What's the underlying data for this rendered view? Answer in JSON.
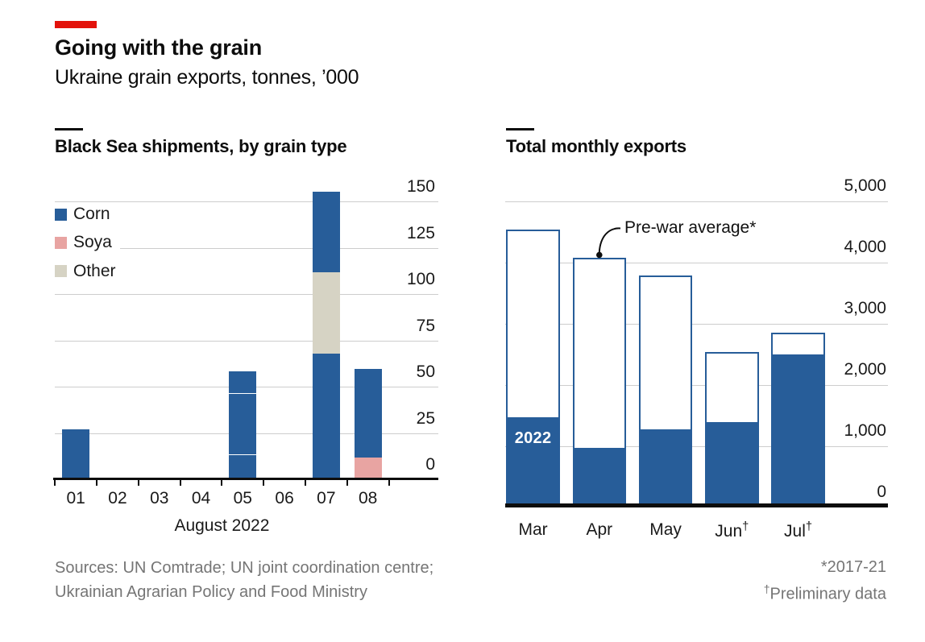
{
  "header": {
    "title": "Going with the grain",
    "subtitle": "Ukraine grain exports, tonnes, ’000"
  },
  "colors": {
    "brand_red": "#E3120B",
    "corn": "#275D99",
    "soya": "#E8A4A2",
    "other": "#D6D3C4",
    "grid": "#CDCDCD",
    "axis": "#0D0D0D"
  },
  "chart_data": [
    {
      "type": "bar",
      "title": "Black Sea shipments, by grain type",
      "xlabel": "August 2022",
      "categories": [
        "01",
        "02",
        "03",
        "04",
        "05",
        "06",
        "07",
        "08"
      ],
      "yticks": [
        0,
        25,
        50,
        75,
        100,
        125,
        150
      ],
      "ylim": [
        0,
        150
      ],
      "legend": [
        {
          "name": "Corn",
          "key": "corn"
        },
        {
          "name": "Soya",
          "key": "soya"
        },
        {
          "name": "Other",
          "key": "other"
        }
      ],
      "bars": [
        {
          "day": "01",
          "segments": [
            {
              "series": "corn",
              "value": 26
            }
          ]
        },
        {
          "day": "02",
          "segments": []
        },
        {
          "day": "03",
          "segments": []
        },
        {
          "day": "04",
          "segments": []
        },
        {
          "day": "05",
          "segments": [
            {
              "series": "corn",
              "value": 12.5
            },
            {
              "series": "corn",
              "value": 33
            },
            {
              "series": "corn",
              "value": 12
            }
          ]
        },
        {
          "day": "06",
          "segments": []
        },
        {
          "day": "07",
          "segments": [
            {
              "series": "corn",
              "value": 67
            },
            {
              "series": "other",
              "value": 44
            },
            {
              "series": "corn",
              "value": 43.5
            }
          ]
        },
        {
          "day": "08",
          "segments": [
            {
              "series": "soya",
              "value": 11
            },
            {
              "series": "corn",
              "value": 47.5
            }
          ]
        }
      ]
    },
    {
      "type": "bar",
      "title": "Total monthly exports",
      "categories": [
        {
          "label": "Mar",
          "dagger": false
        },
        {
          "label": "Apr",
          "dagger": false
        },
        {
          "label": "May",
          "dagger": false
        },
        {
          "label": "Jun",
          "dagger": true
        },
        {
          "label": "Jul",
          "dagger": true
        }
      ],
      "yticks": [
        0,
        1000,
        2000,
        3000,
        4000,
        5000
      ],
      "ylim": [
        0,
        5000
      ],
      "ytick_labels": [
        "0",
        "1,000",
        "2,000",
        "3,000",
        "4,000",
        "5,000"
      ],
      "series": [
        {
          "name": "Pre-war average*",
          "style": "outline",
          "values": [
            4530,
            4070,
            3780,
            2540,
            2850
          ]
        },
        {
          "name": "2022",
          "style": "solid",
          "values": [
            1465,
            965,
            1270,
            1390,
            2490
          ]
        }
      ],
      "annotation": {
        "text": "Pre-war average*",
        "points_to": "Apr"
      },
      "bar_label": "2022"
    }
  ],
  "footnotes": {
    "sources_line1": "Sources: UN Comtrade; UN joint coordination centre;",
    "sources_line2": "Ukrainian Agrarian Policy and Food Ministry",
    "right_line1": "*2017-21",
    "right_line2_sup": "†",
    "right_line2": "Preliminary data"
  }
}
